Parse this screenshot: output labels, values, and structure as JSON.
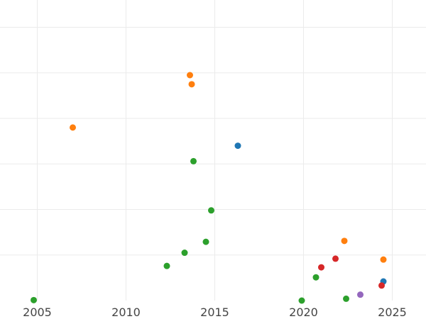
{
  "chart_data": {
    "type": "scatter",
    "title": "",
    "xlabel": "",
    "ylabel": "",
    "xlim": [
      2002.9,
      2026.9
    ],
    "ylim": [
      -0.2,
      6.4
    ],
    "grid": true,
    "y_tick_values": [
      0.8,
      1.8,
      2.8,
      3.8,
      4.8,
      5.8
    ],
    "x_ticks": [
      {
        "value": 2005,
        "label": "2005"
      },
      {
        "value": 2010,
        "label": "2010"
      },
      {
        "value": 2015,
        "label": "2015"
      },
      {
        "value": 2020,
        "label": "2020"
      },
      {
        "value": 2025,
        "label": "2025"
      }
    ],
    "series": [
      {
        "color": "#1f77b4",
        "points": [
          {
            "x": 2016.3,
            "y": 3.2
          },
          {
            "x": 2024.5,
            "y": 0.22
          }
        ]
      },
      {
        "color": "#ff7f0e",
        "points": [
          {
            "x": 2007.0,
            "y": 3.6
          },
          {
            "x": 2013.6,
            "y": 4.75
          },
          {
            "x": 2013.7,
            "y": 4.55
          },
          {
            "x": 2022.3,
            "y": 1.11
          },
          {
            "x": 2024.5,
            "y": 0.7
          }
        ]
      },
      {
        "color": "#2ca02c",
        "points": [
          {
            "x": 2004.8,
            "y": -0.19
          },
          {
            "x": 2012.3,
            "y": 0.56
          },
          {
            "x": 2013.3,
            "y": 0.85
          },
          {
            "x": 2013.8,
            "y": 2.86
          },
          {
            "x": 2014.5,
            "y": 1.09
          },
          {
            "x": 2014.8,
            "y": 1.78
          },
          {
            "x": 2019.9,
            "y": -0.2
          },
          {
            "x": 2020.7,
            "y": 0.31
          },
          {
            "x": 2022.4,
            "y": -0.16
          }
        ]
      },
      {
        "color": "#d62728",
        "points": [
          {
            "x": 2021.0,
            "y": 0.53
          },
          {
            "x": 2021.8,
            "y": 0.72
          },
          {
            "x": 2024.4,
            "y": 0.13
          }
        ]
      },
      {
        "color": "#9467bd",
        "points": [
          {
            "x": 2023.2,
            "y": -0.07
          }
        ]
      }
    ]
  }
}
